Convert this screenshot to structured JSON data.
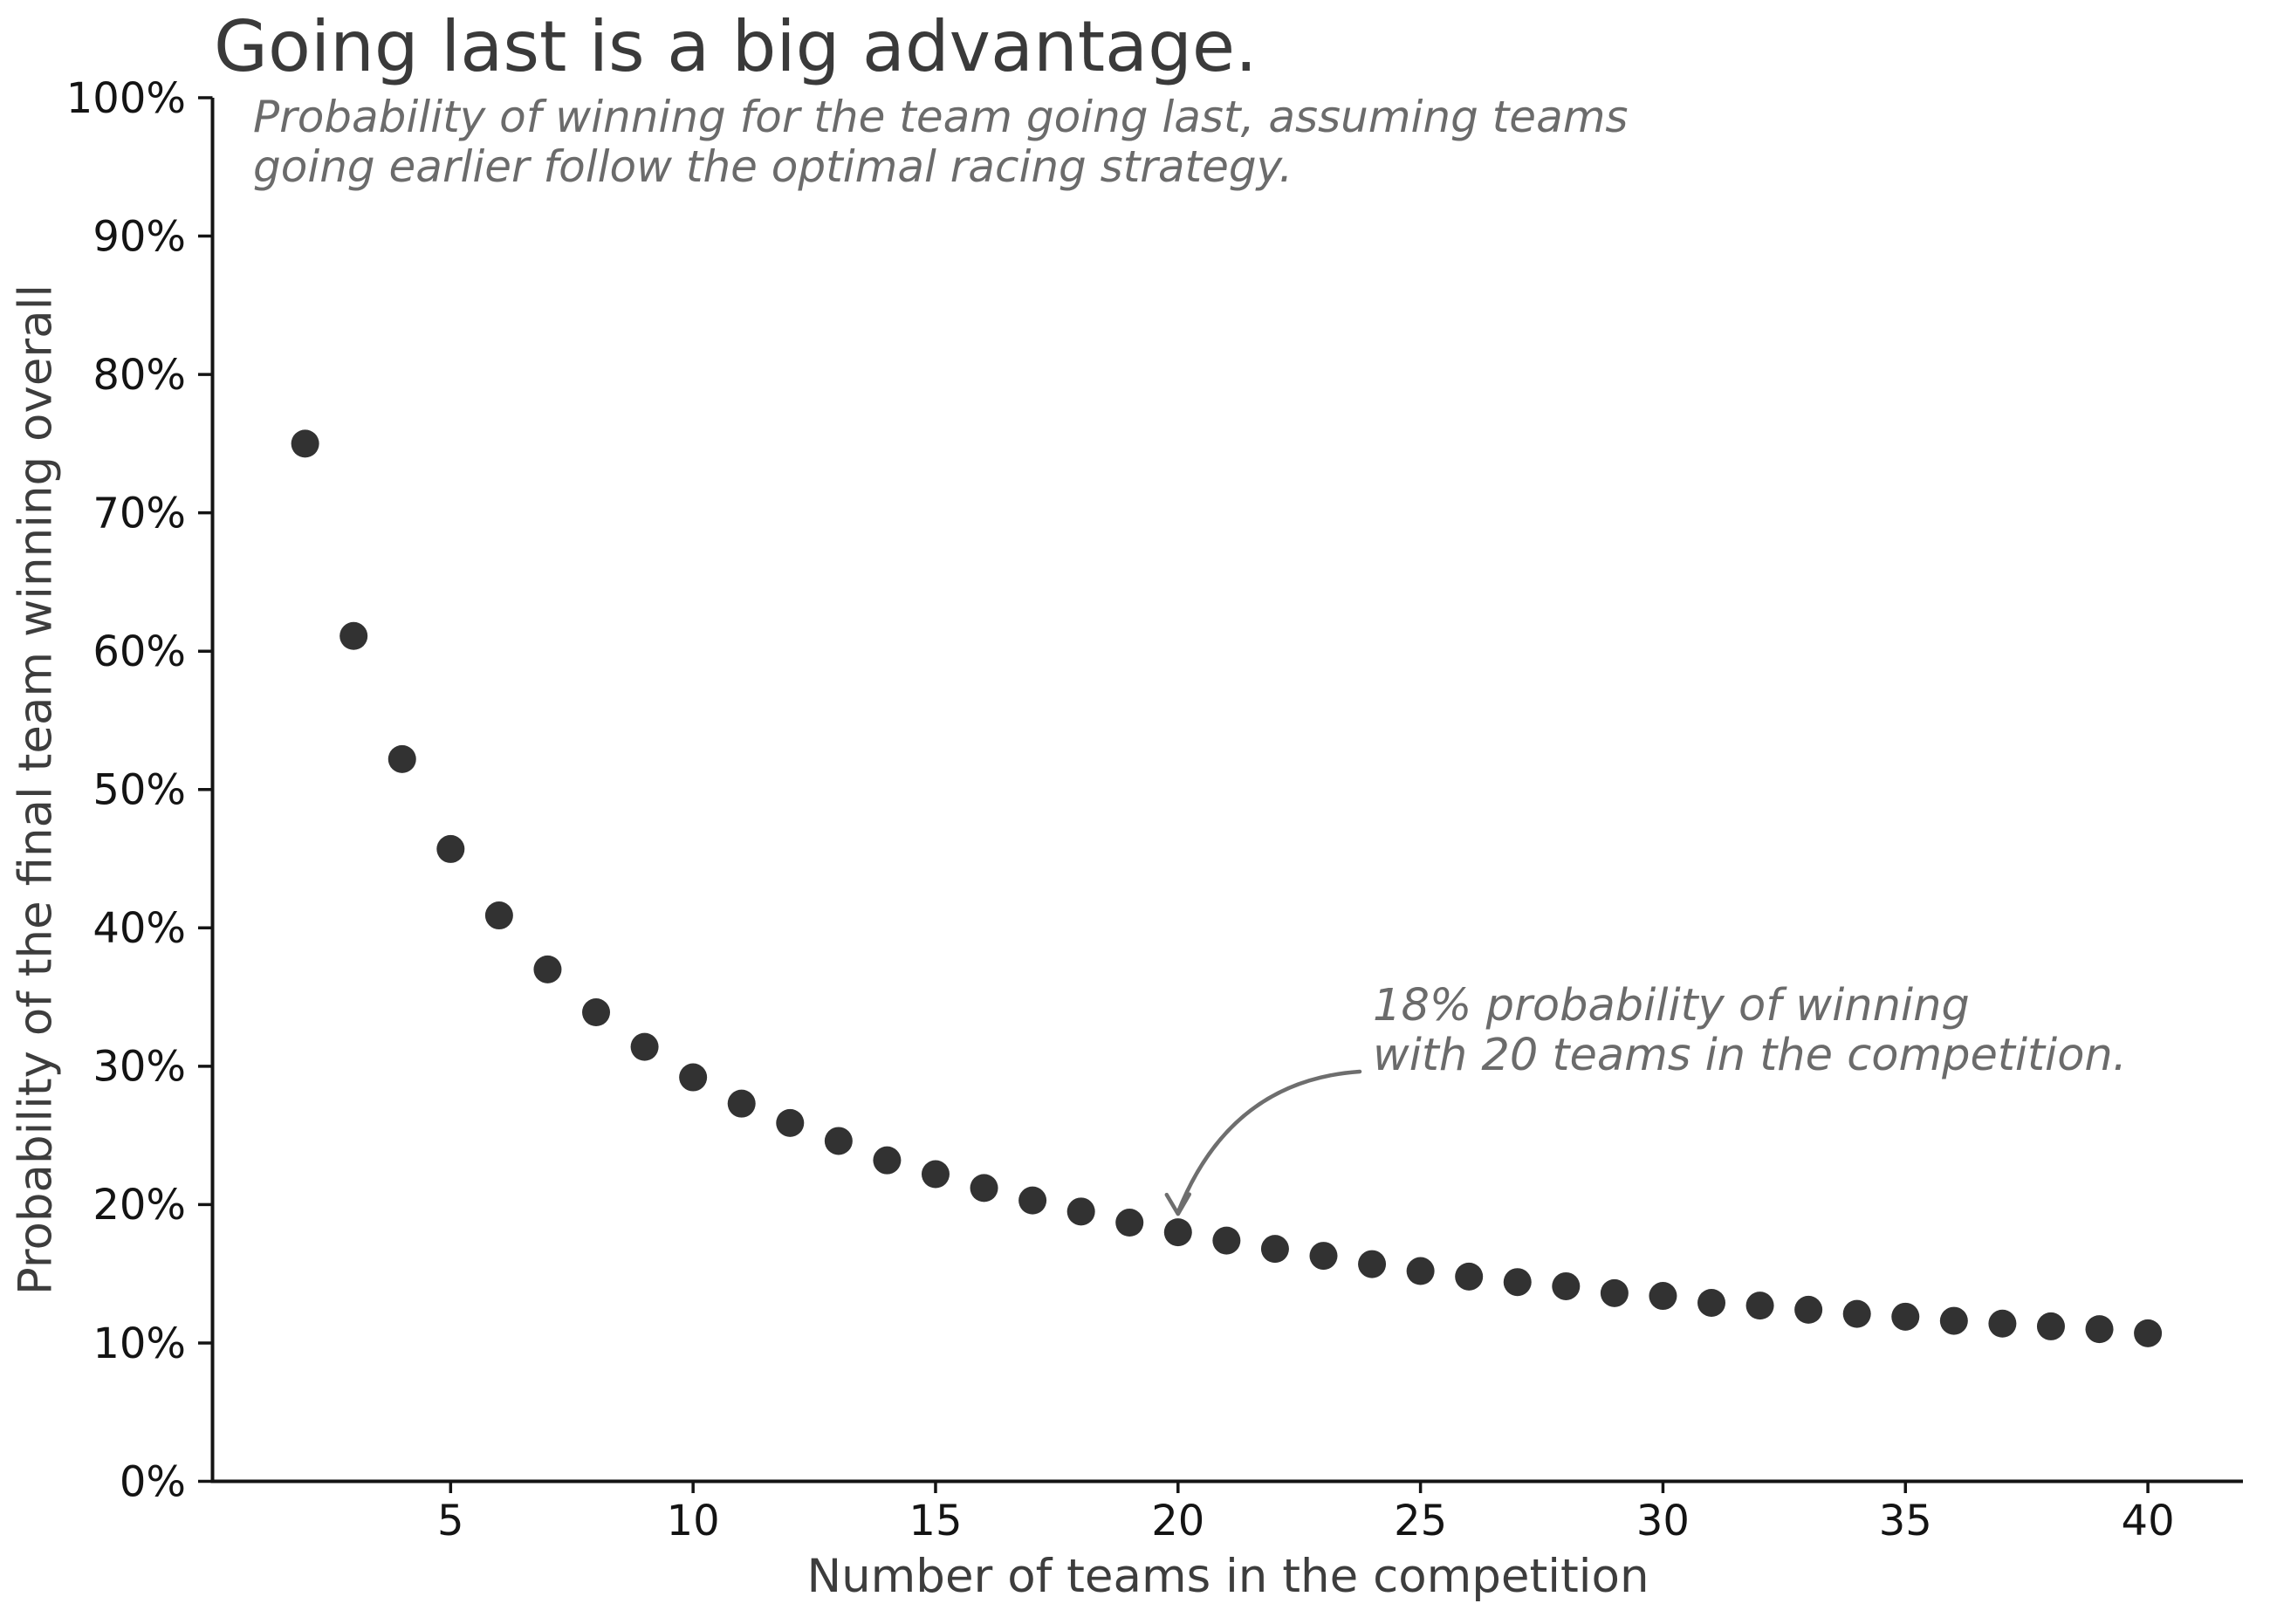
{
  "header": {
    "title": "Going last is a big advantage.",
    "subtitle": "Probability of winning for the team going last, assuming teams\ngoing earlier follow the optimal racing strategy."
  },
  "chart_data": {
    "type": "scatter",
    "title": "Going last is a big advantage.",
    "subtitle": "Probability of winning for the team going last, assuming teams going earlier follow the optimal racing strategy.",
    "xlabel": "Number of teams in the competition",
    "ylabel": "Probability of the final team winning overall",
    "x": [
      2,
      3,
      4,
      5,
      6,
      7,
      8,
      9,
      10,
      11,
      12,
      13,
      14,
      15,
      16,
      17,
      18,
      19,
      20,
      21,
      22,
      23,
      24,
      25,
      26,
      27,
      28,
      29,
      30,
      31,
      32,
      33,
      34,
      35,
      36,
      37,
      38,
      39,
      40
    ],
    "y_percent": [
      75.0,
      61.1,
      52.2,
      45.7,
      40.9,
      37.0,
      33.9,
      31.4,
      29.2,
      27.3,
      25.9,
      24.6,
      23.2,
      22.2,
      21.2,
      20.3,
      19.5,
      18.7,
      18.0,
      17.4,
      16.8,
      16.3,
      15.7,
      15.2,
      14.8,
      14.4,
      14.1,
      13.6,
      13.4,
      12.9,
      12.7,
      12.4,
      12.1,
      11.9,
      11.6,
      11.4,
      11.2,
      11.0,
      10.7
    ],
    "xlim": [
      0.09,
      41.96
    ],
    "ylim": [
      0,
      100
    ],
    "xticks": [
      5,
      10,
      15,
      20,
      25,
      30,
      35,
      40
    ],
    "yticks": [
      0,
      10,
      20,
      30,
      40,
      50,
      60,
      70,
      80,
      90,
      100
    ],
    "ytick_suffix": "%",
    "grid": false,
    "legend": null,
    "annotation": {
      "text": "18% probability of winning\nwith 20 teams in the competition.",
      "target_x": 20,
      "target_y_percent": 18
    },
    "colors": {
      "dot": "#323232",
      "axis": "#141414",
      "tick_label": "#141414",
      "title": "#3a3a3a",
      "subtitle": "#6b6b6b",
      "axis_label": "#3d3d3d",
      "arrow": "#6e6e6e"
    }
  }
}
